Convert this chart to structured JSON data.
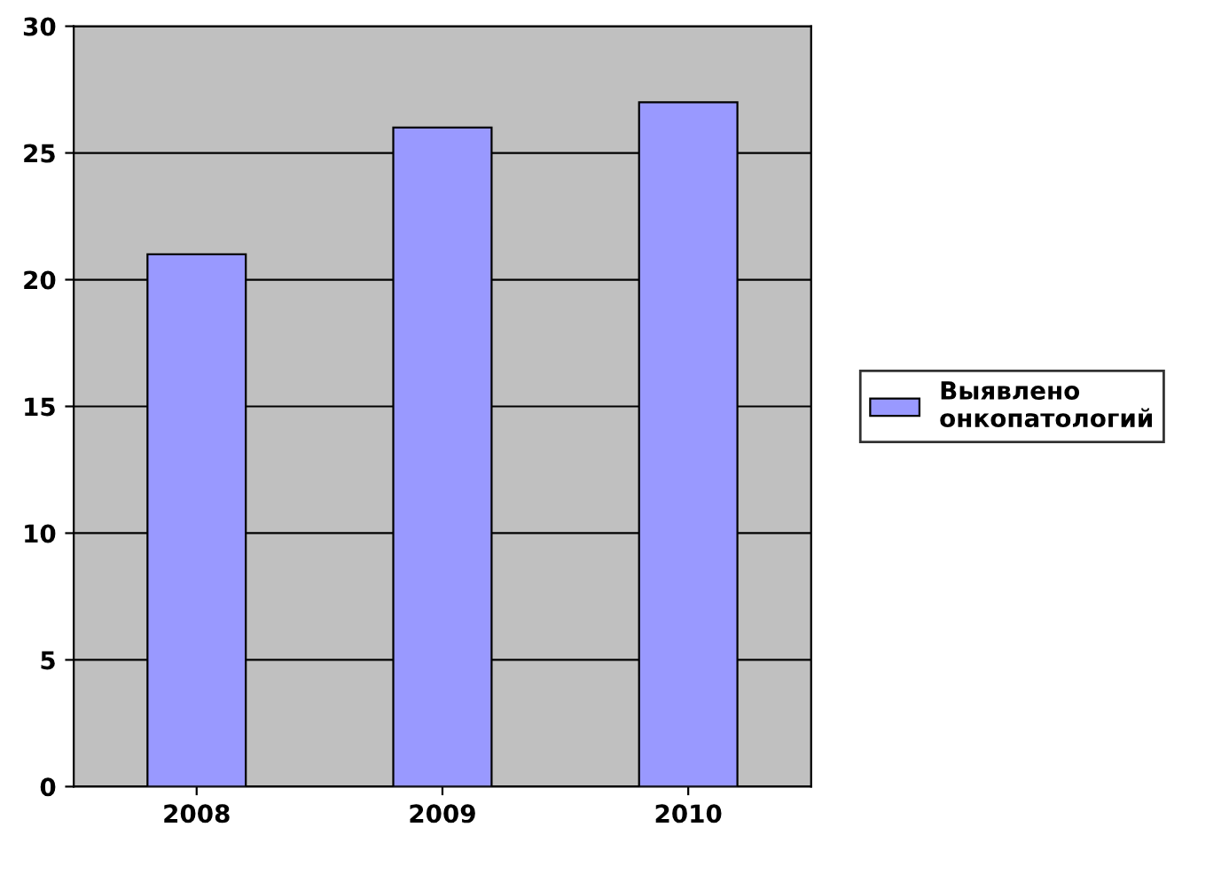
{
  "chart_data": {
    "type": "bar",
    "categories": [
      "2008",
      "2009",
      "2010"
    ],
    "series": [
      {
        "name": "Выявлено онкопатологий",
        "color": "#9999ff",
        "values": [
          21,
          26,
          27
        ]
      }
    ],
    "ylim": [
      0,
      30
    ],
    "yticks": [
      0,
      5,
      10,
      15,
      20,
      25,
      30
    ],
    "grid": "y",
    "legend": "right"
  }
}
